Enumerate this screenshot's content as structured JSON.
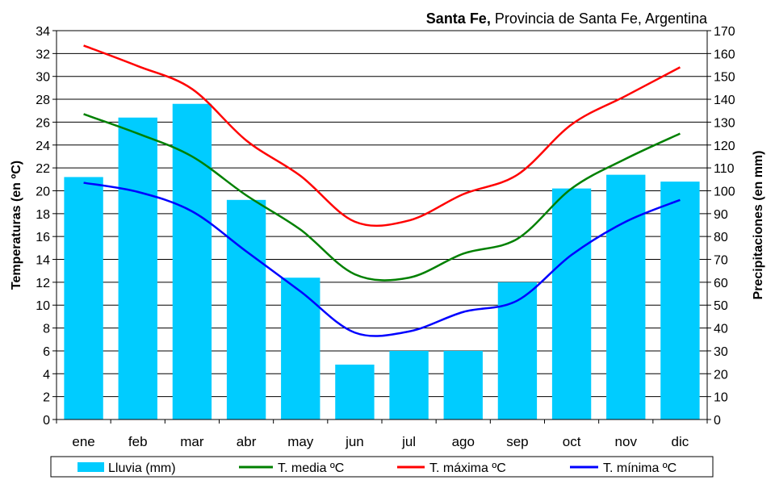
{
  "chart_data": {
    "type": "bar",
    "title_bold": "Santa Fe,",
    "title_rest": " Provincia de Santa Fe, Argentina",
    "categories": [
      "ene",
      "feb",
      "mar",
      "abr",
      "may",
      "jun",
      "jul",
      "ago",
      "sep",
      "oct",
      "nov",
      "dic"
    ],
    "ylabel_left": "Temperaturas (en ºC)",
    "ylabel_right": "Precipitaciones (en mm)",
    "ylim_left": [
      0,
      34
    ],
    "ylim_right": [
      0,
      170
    ],
    "yticks_left": [
      0,
      2,
      4,
      6,
      8,
      10,
      12,
      14,
      16,
      18,
      20,
      22,
      24,
      26,
      28,
      30,
      32,
      34
    ],
    "yticks_right": [
      0,
      10,
      20,
      30,
      40,
      50,
      60,
      70,
      80,
      90,
      100,
      110,
      120,
      130,
      140,
      150,
      160,
      170
    ],
    "grid": true,
    "legend_position": "bottom",
    "bar_series": {
      "name": "Lluvia (mm)",
      "axis": "right",
      "color": "#00CCFF",
      "values": [
        106,
        132,
        138,
        96,
        62,
        24,
        30,
        30,
        60,
        101,
        107,
        104
      ]
    },
    "line_series": [
      {
        "name": "T. media ºC",
        "axis": "left",
        "color": "#008000",
        "values": [
          26.7,
          25.0,
          23.0,
          19.6,
          16.6,
          12.7,
          12.4,
          14.5,
          15.8,
          20.2,
          22.8,
          25.0
        ]
      },
      {
        "name": "T. máxima ºC",
        "axis": "left",
        "color": "#FF0000",
        "values": [
          32.7,
          30.9,
          28.9,
          24.4,
          21.3,
          17.3,
          17.4,
          19.7,
          21.4,
          25.8,
          28.3,
          30.8
        ]
      },
      {
        "name": "T. mínima ºC",
        "axis": "left",
        "color": "#0000FF",
        "values": [
          20.7,
          19.9,
          18.2,
          14.7,
          11.2,
          7.6,
          7.7,
          9.4,
          10.4,
          14.4,
          17.3,
          19.2
        ]
      }
    ]
  }
}
